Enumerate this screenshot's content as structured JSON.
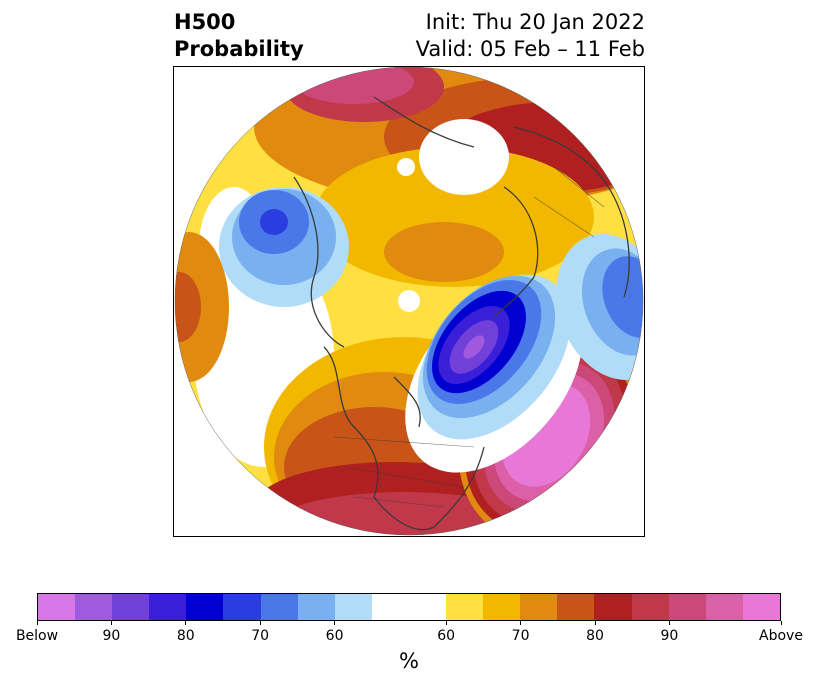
{
  "header": {
    "title_line1": "H500",
    "title_line2": "Probability",
    "init": "Init: Thu 20 Jan 2022",
    "valid": "Valid: 05 Feb – 11 Feb"
  },
  "colorbar": {
    "colors": [
      "#d878e8",
      "#a05ae0",
      "#7040d8",
      "#3a1ed8",
      "#0000d0",
      "#2a3ee0",
      "#4a78e8",
      "#78b0f0",
      "#b0dcf8",
      "#ffffff",
      "#ffffff",
      "#ffe040",
      "#f2b800",
      "#e08a10",
      "#c85418",
      "#b02020",
      "#c0384a",
      "#cc4878",
      "#dc60a8",
      "#e878d8"
    ],
    "tick_labels": [
      "Below",
      "90",
      "80",
      "70",
      "60",
      "60",
      "70",
      "80",
      "90",
      "Above"
    ],
    "unit_label": "%"
  },
  "map": {
    "colors": {
      "ocean": "#ffffff",
      "coast": "#3a3a3a",
      "above_light": "#ffe040",
      "above_mid": "#f2b800",
      "above_orange": "#e08a10",
      "above_dark": "#c85418",
      "above_red": "#b02020",
      "above_crimson": "#c0384a",
      "above_rose": "#cc4878",
      "above_pink": "#dc60a8",
      "above_max": "#e878d8",
      "below_light": "#b0dcf8",
      "below_sky": "#78b0f0",
      "below_mid": "#4a78e8",
      "below_blue": "#2a3ee0",
      "below_deep": "#0000d0",
      "below_indigo": "#3a1ed8",
      "below_violet": "#7040d8",
      "below_max": "#a05ae0"
    }
  }
}
